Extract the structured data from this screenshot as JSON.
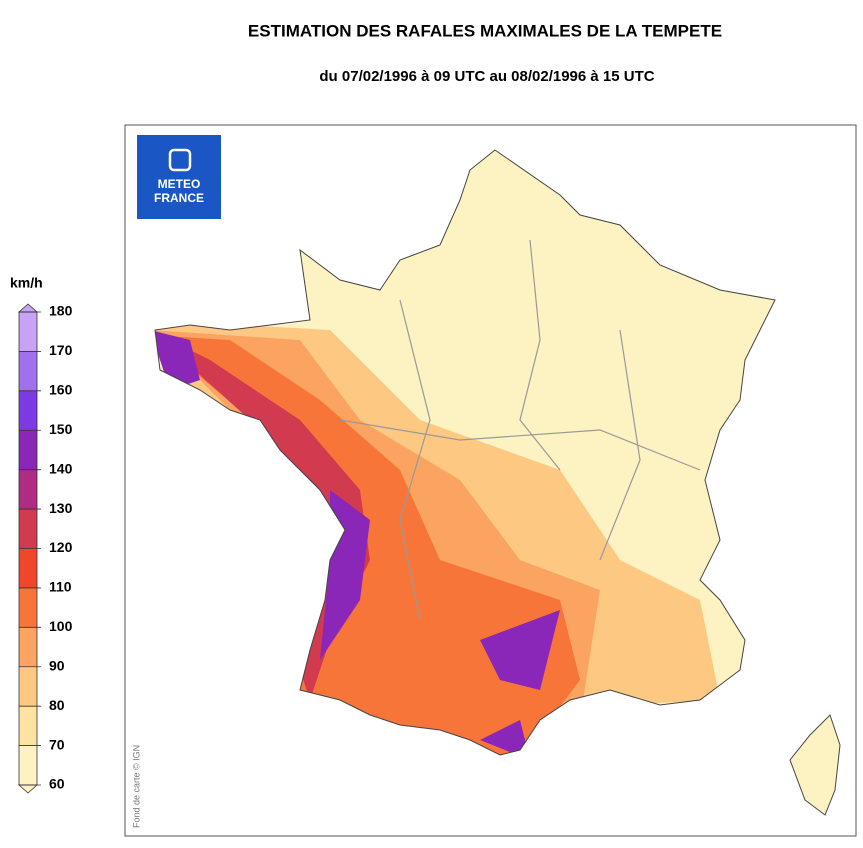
{
  "header": {
    "title": "ESTIMATION DES RAFALES MAXIMALES DE LA TEMPETE",
    "subtitle": "du 07/02/1996 à 09 UTC au 08/02/1996 à 15 UTC"
  },
  "logo": {
    "line1": "METEO",
    "line2": "FRANCE"
  },
  "credit": "Fond de carte © IGN",
  "legend": {
    "unit": "km/h",
    "ticks": [
      60,
      70,
      80,
      90,
      100,
      110,
      120,
      130,
      140,
      150,
      160,
      170,
      180
    ],
    "colors": [
      "#fdf2c2",
      "#fde2a2",
      "#fcc882",
      "#fba462",
      "#f8753a",
      "#f0462a",
      "#d23a50",
      "#b02c82",
      "#8a26b8",
      "#7c3ae4",
      "#a070ee",
      "#c8a2f4"
    ]
  }
}
